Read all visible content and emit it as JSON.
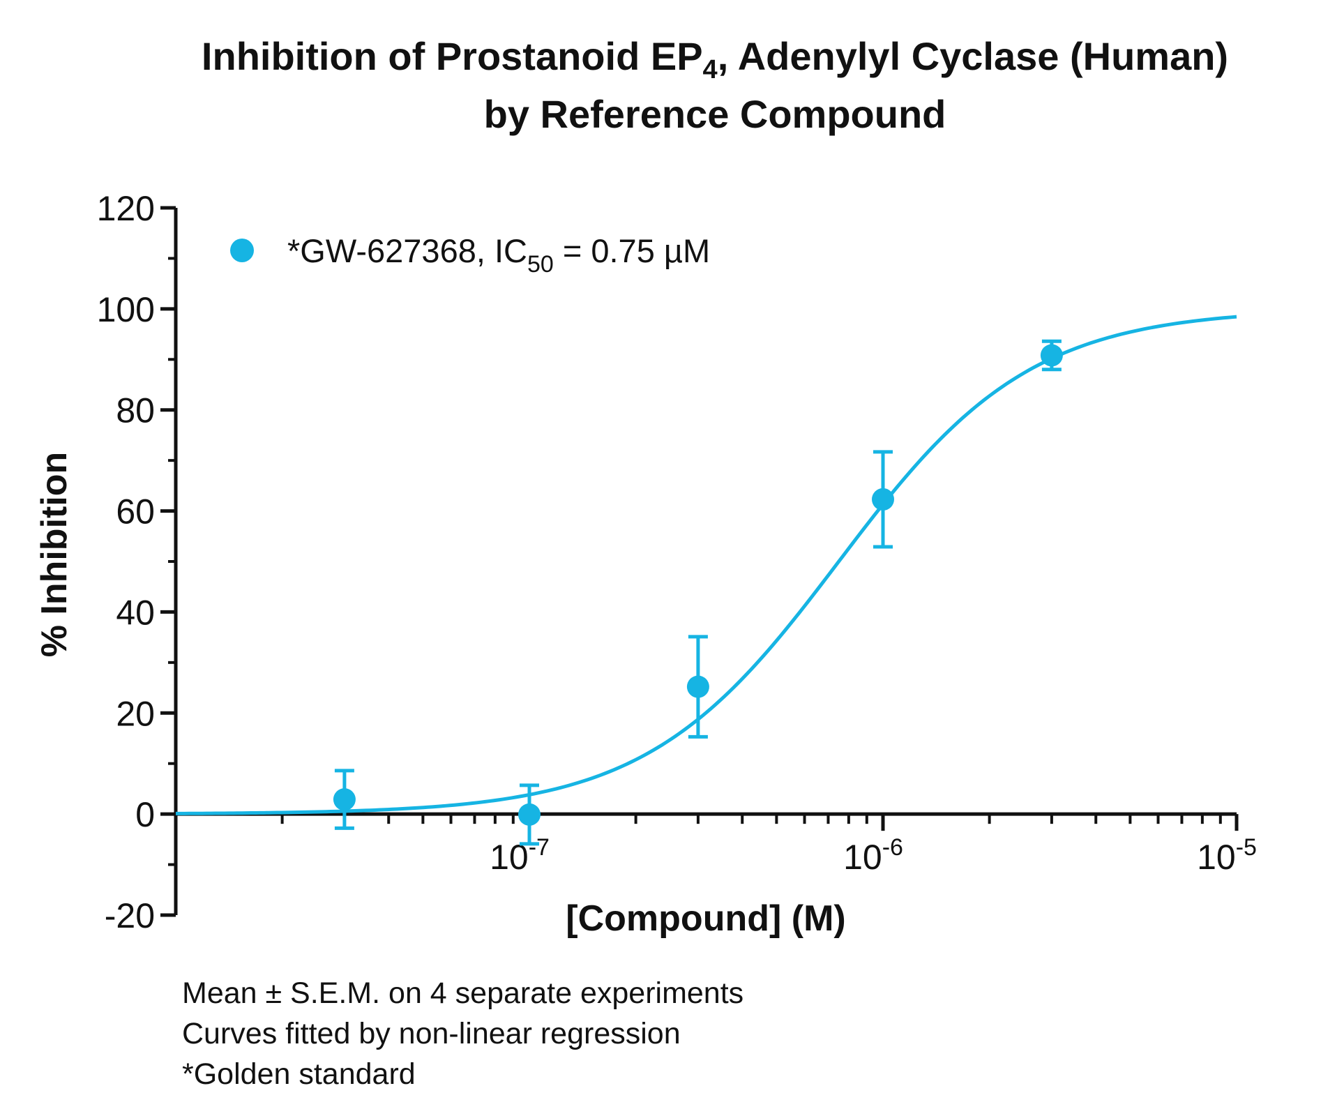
{
  "chart_data": {
    "type": "scatter",
    "title": {
      "line1_main": "Inhibition of Prostanoid EP",
      "line1_sub": "4",
      "line1_rest": ", Adenylyl Cyclase (Human)",
      "line2": "by Reference Compound"
    },
    "xlabel": "[Compound] (M)",
    "ylabel": "% Inhibition",
    "x_scale": "log",
    "xlim": [
      1e-08,
      1e-05
    ],
    "ylim": [
      -20,
      120
    ],
    "y_ticks": [
      -20,
      0,
      20,
      40,
      60,
      80,
      100,
      120
    ],
    "y_tick_labels": [
      "-20",
      "0",
      "20",
      "40",
      "60",
      "80",
      "100",
      "120"
    ],
    "x_tick_labels": [
      {
        "value": 1e-07,
        "base": "10",
        "exp": "-7"
      },
      {
        "value": 1e-06,
        "base": "10",
        "exp": "-6"
      },
      {
        "value": 1e-05,
        "base": "10",
        "exp": "-5"
      }
    ],
    "grid": false,
    "legend_position": "top-left",
    "series": [
      {
        "name": "*GW-627368, IC50 = 0.75 µM",
        "legend": {
          "prefix": "*GW-627368, IC",
          "sub": "50",
          "suffix": " = 0.75 µM"
        },
        "color": "#16b4e3",
        "points": [
          {
            "x": 3e-08,
            "y": 2.9,
            "err": 5.7
          },
          {
            "x": 1e-07,
            "y": -0.1,
            "err": 5.8
          },
          {
            "x": 3e-07,
            "y": 25.2,
            "err": 9.9
          },
          {
            "x": 1e-06,
            "y": 62.3,
            "err": 9.4
          },
          {
            "x": 3e-06,
            "y": 90.8,
            "err": 2.8
          }
        ],
        "fit": {
          "model": "sigmoidal dose-response",
          "ic50": 7.5e-07,
          "bottom": 0,
          "top": 100,
          "hill": 1.6
        }
      }
    ],
    "footnotes": [
      "Mean ± S.E.M. on 4 separate experiments",
      "Curves fitted by non-linear regression",
      "*Golden standard"
    ]
  }
}
